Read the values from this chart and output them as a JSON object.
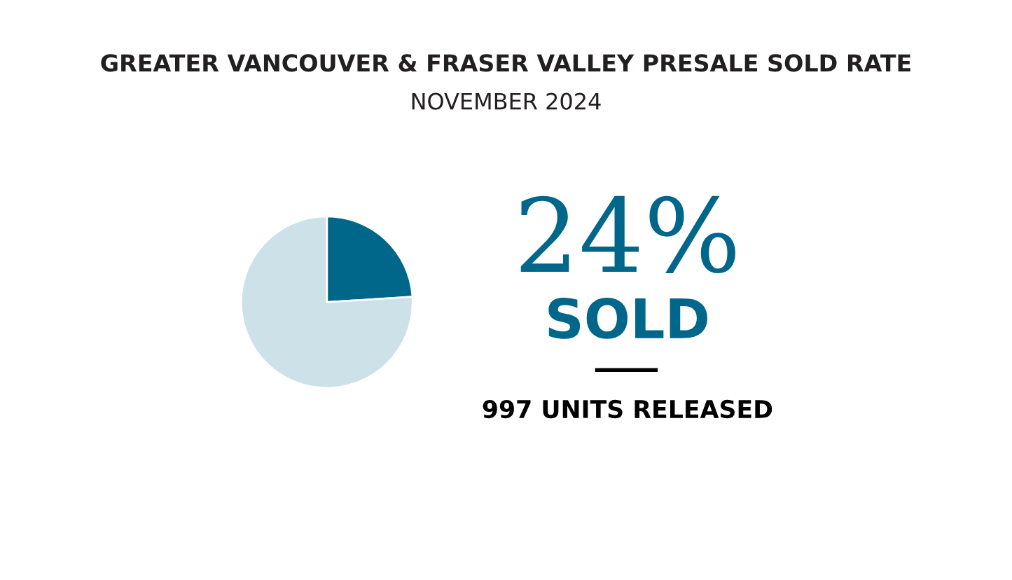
{
  "chart_data": {
    "type": "pie",
    "title": "GREATER VANCOUVER & FRASER VALLEY PRESALE SOLD RATE",
    "subtitle": "NOVEMBER 2024",
    "categories": [
      null,
      null
    ],
    "values": [
      24,
      76
    ],
    "colors": [
      "#00668a",
      "#cce1e8"
    ],
    "annotations": [
      "24%",
      "SOLD",
      "997 UNITS RELEASED"
    ]
  }
}
